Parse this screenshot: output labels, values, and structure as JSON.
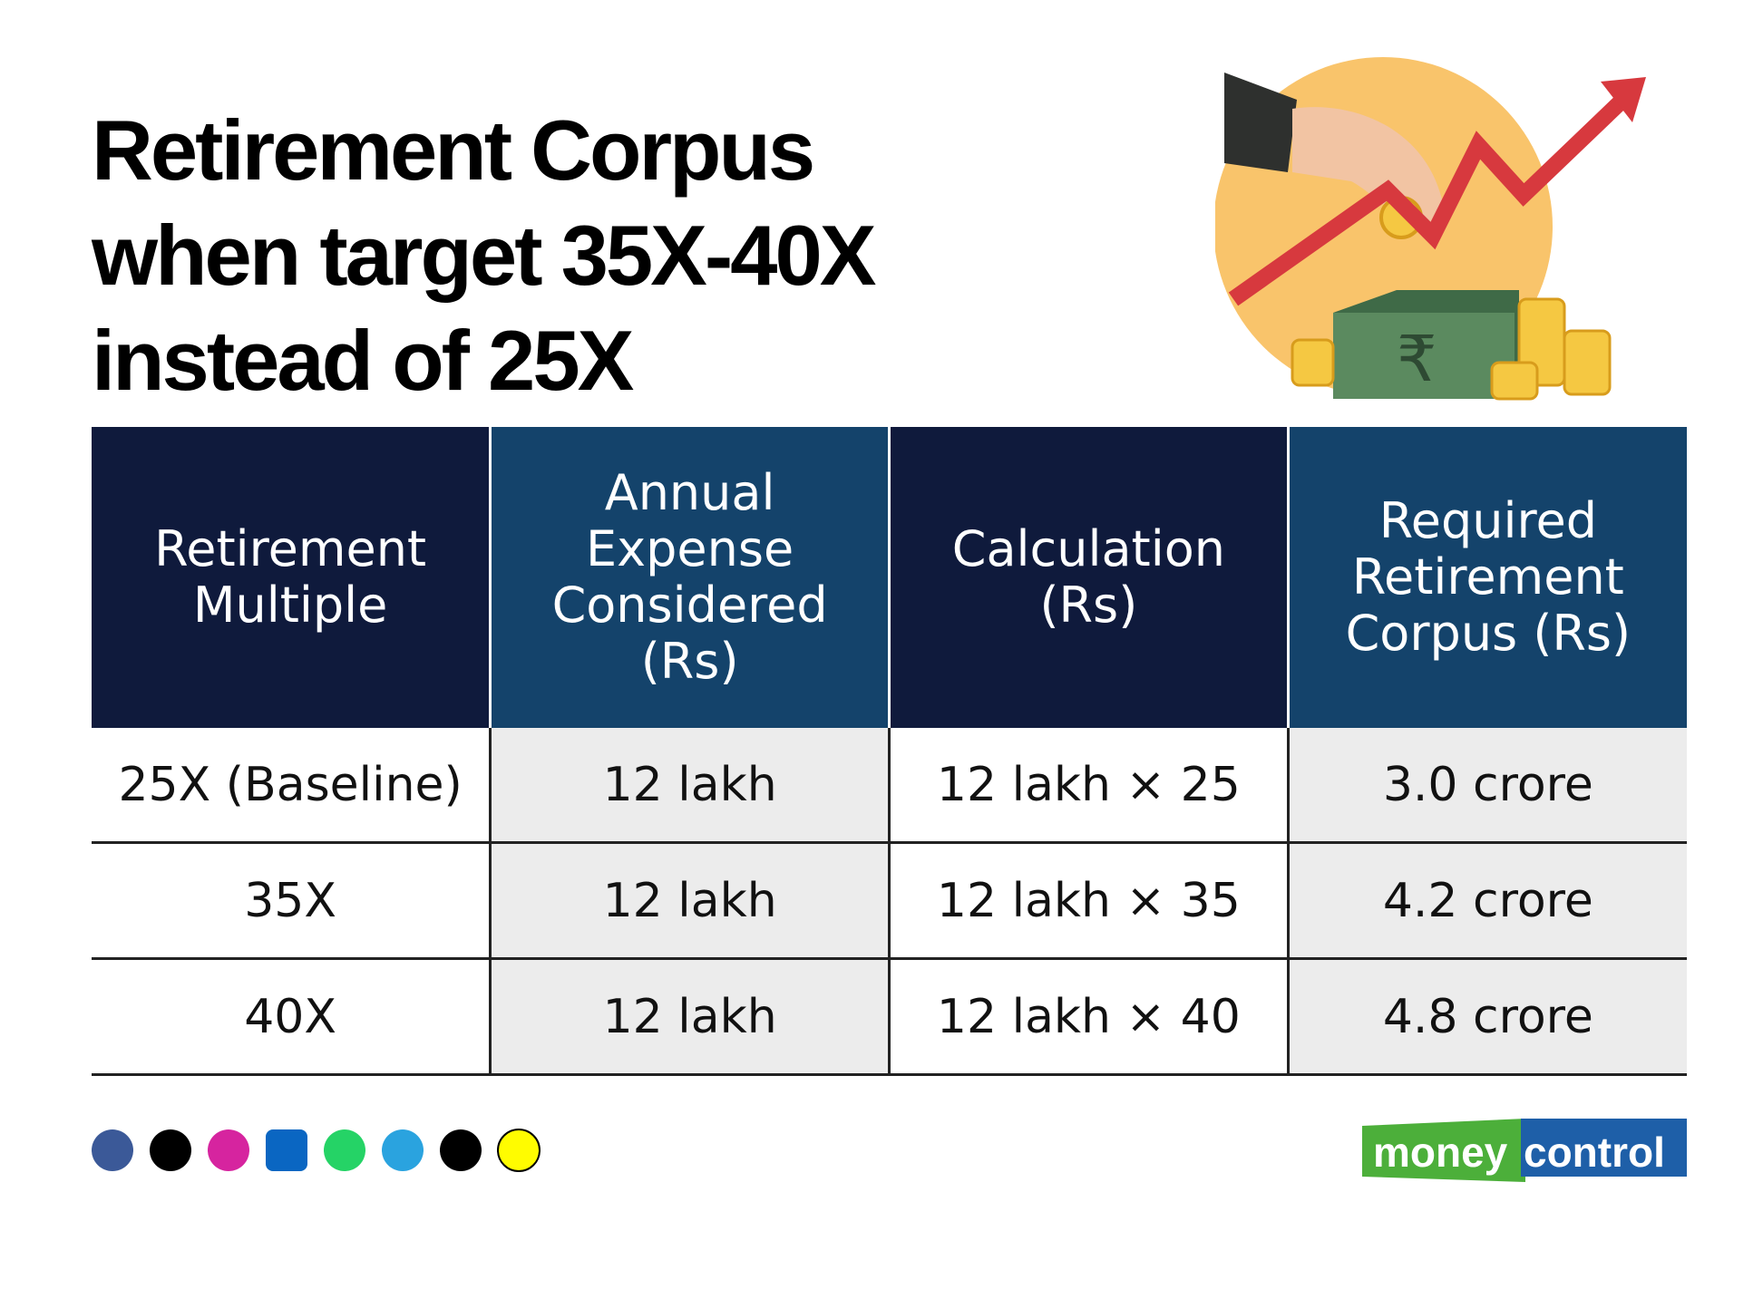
{
  "header": {
    "title_lines": [
      "Retirement Corpus",
      "when target 35X-40X",
      "instead of 25X"
    ]
  },
  "table": {
    "columns": [
      "Retirement Multiple",
      "Annual Expense Considered (Rs)",
      "Calculation (Rs)",
      "Required Retirement Corpus (Rs)"
    ],
    "rows": [
      [
        "25X (Baseline)",
        "12 lakh",
        "12 lakh × 25",
        "3.0 crore"
      ],
      [
        "35X",
        "12 lakh",
        "12 lakh × 35",
        "4.2 crore"
      ],
      [
        "40X",
        "12 lakh",
        "12 lakh × 40",
        "4.8 crore"
      ]
    ]
  },
  "footer": {
    "logo": [
      "money",
      "control"
    ]
  }
}
